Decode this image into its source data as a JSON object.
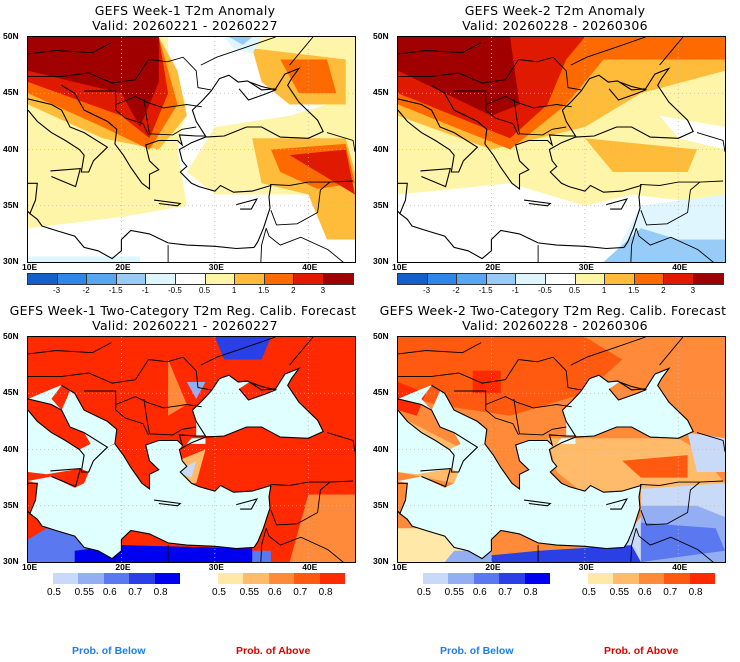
{
  "panels": [
    {
      "title": "GEFS Week-1 T2m Anomaly",
      "valid": "Valid: 20260221 - 20260227",
      "type": "anomaly",
      "lat_labels": [
        "50N",
        "45N",
        "40N",
        "35N",
        "30N"
      ],
      "lon_labels": [
        "10E",
        "20E",
        "30E",
        "40E"
      ]
    },
    {
      "title": "GEFS Week-2 T2m Anomaly",
      "valid": "Valid: 20260228 - 20260306",
      "type": "anomaly",
      "lat_labels": [
        "50N",
        "45N",
        "40N",
        "35N",
        "30N"
      ],
      "lon_labels": [
        "10E",
        "20E",
        "30E",
        "40E"
      ]
    },
    {
      "title": "GEFS Week-1 Two-Category T2m Reg. Calib. Forecast",
      "valid": "Valid: 20260221 - 20260227",
      "type": "probability",
      "lat_labels": [
        "50N",
        "45N",
        "40N",
        "35N",
        "30N"
      ],
      "lon_labels": [
        "10E",
        "20E",
        "30E",
        "40E"
      ]
    },
    {
      "title": "GEFS Week-2 Two-Category T2m Reg. Calib. Forecast",
      "valid": "Valid: 20260228 - 20260306",
      "type": "probability",
      "lat_labels": [
        "50N",
        "45N",
        "40N",
        "35N",
        "30N"
      ],
      "lon_labels": [
        "10E",
        "20E",
        "30E",
        "40E"
      ]
    }
  ],
  "anomaly_colorbar": {
    "colors": [
      "#1560c8",
      "#2f86e6",
      "#58a6f0",
      "#98ccf8",
      "#dff6ff",
      "#ffffff",
      "#fff5a8",
      "#ffbb3a",
      "#ff6a00",
      "#e01a00",
      "#a00000"
    ],
    "ticks": [
      "-3",
      "-2",
      "-1.5",
      "-1",
      "-0.5",
      "0.5",
      "1",
      "1.5",
      "2",
      "3"
    ]
  },
  "prob_below_colorbar": {
    "colors": [
      "#c8daf8",
      "#94aef4",
      "#5a78f0",
      "#2a40e6",
      "#0000f0"
    ],
    "ticks": [
      "0.5",
      "0.55",
      "0.6",
      "0.7",
      "0.8"
    ]
  },
  "prob_above_colorbar": {
    "colors": [
      "#ffe8a8",
      "#ffba6a",
      "#ff8a3a",
      "#ff5a10",
      "#ff2a00"
    ],
    "ticks": [
      "0.5",
      "0.55",
      "0.6",
      "0.7",
      "0.8"
    ]
  },
  "legend": {
    "below_label": "Prob. of Below",
    "above_label": "Prob. of Above",
    "below_color": "#1e7cf0",
    "above_color": "#e00000"
  },
  "sea_color": "#e0ffff"
}
